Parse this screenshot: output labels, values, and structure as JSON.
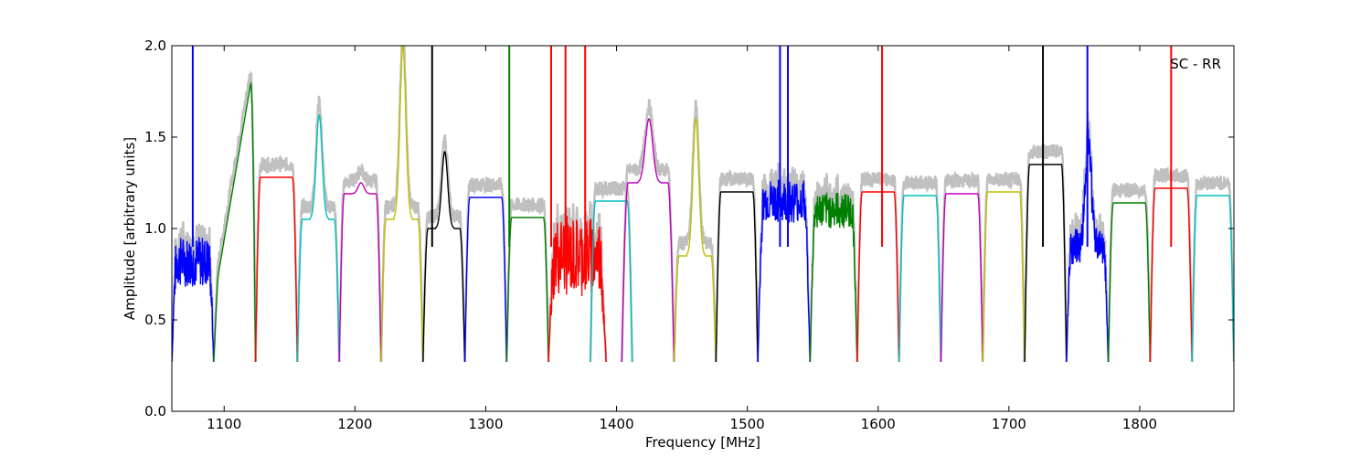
{
  "chart_data": {
    "type": "line",
    "title": "",
    "annotation": "SC - RR",
    "xlabel": "Frequency [MHz]",
    "ylabel": "Amplitude [arbitrary units]",
    "xlim": [
      1060,
      1872
    ],
    "ylim": [
      0,
      2.0
    ],
    "xticks": [
      1100,
      1200,
      1300,
      1400,
      1500,
      1600,
      1700,
      1800
    ],
    "xtick_labels": [
      "1100",
      "1200",
      "1300",
      "1400",
      "1500",
      "1600",
      "1700",
      "1800"
    ],
    "yticks": [
      0.0,
      0.5,
      1.0,
      1.5,
      2.0
    ],
    "ytick_labels": [
      "0.0",
      "0.5",
      "1.0",
      "1.5",
      "2.0"
    ],
    "grid": false,
    "band_colors": [
      "#0000ff",
      "#008000",
      "#ff0000",
      "#00bfbf",
      "#bf00bf",
      "#bfbf00",
      "#000000"
    ],
    "envelope_color": "#c0c0c0",
    "bands": [
      {
        "start": 1060,
        "end": 1092,
        "level": 0.82,
        "noise": 0.14,
        "color": "#0000ff"
      },
      {
        "start": 1092,
        "end": 1124,
        "level": 1.95,
        "shape": "ramp",
        "color": "#008000"
      },
      {
        "start": 1124,
        "end": 1156,
        "level": 1.28,
        "color": "#ff0000"
      },
      {
        "start": 1156,
        "end": 1188,
        "level": 1.05,
        "peak": 1.62,
        "color": "#00bfbf"
      },
      {
        "start": 1188,
        "end": 1220,
        "level": 1.19,
        "peak": 1.25,
        "color": "#bf00bf"
      },
      {
        "start": 1220,
        "end": 1252,
        "level": 1.05,
        "peak": 2.0,
        "color": "#bfbf00"
      },
      {
        "start": 1252,
        "end": 1284,
        "level": 1.0,
        "peak": 1.42,
        "color": "#000000"
      },
      {
        "start": 1284,
        "end": 1316,
        "level": 1.17,
        "color": "#0000ff"
      },
      {
        "start": 1316,
        "end": 1348,
        "level": 1.06,
        "color": "#008000"
      },
      {
        "start": 1348,
        "end": 1392,
        "level": 0.85,
        "noise": 0.22,
        "color": "#ff0000"
      },
      {
        "start": 1380,
        "end": 1412,
        "level": 1.15,
        "color": "#00bfbf"
      },
      {
        "start": 1404,
        "end": 1444,
        "level": 1.25,
        "peak": 1.6,
        "color": "#bf00bf"
      },
      {
        "start": 1444,
        "end": 1476,
        "level": 0.85,
        "peak": 1.6,
        "color": "#bfbf00"
      },
      {
        "start": 1476,
        "end": 1508,
        "level": 1.2,
        "color": "#000000"
      },
      {
        "start": 1508,
        "end": 1548,
        "level": 1.15,
        "noise": 0.12,
        "color": "#0000ff"
      },
      {
        "start": 1548,
        "end": 1584,
        "level": 1.1,
        "noise": 0.1,
        "color": "#008000"
      },
      {
        "start": 1584,
        "end": 1616,
        "level": 1.2,
        "color": "#ff0000"
      },
      {
        "start": 1616,
        "end": 1648,
        "level": 1.18,
        "color": "#00bfbf"
      },
      {
        "start": 1648,
        "end": 1680,
        "level": 1.19,
        "color": "#bf00bf"
      },
      {
        "start": 1680,
        "end": 1712,
        "level": 1.2,
        "color": "#bfbf00"
      },
      {
        "start": 1712,
        "end": 1744,
        "level": 1.35,
        "color": "#000000"
      },
      {
        "start": 1744,
        "end": 1776,
        "level": 0.9,
        "noise": 0.1,
        "peak": 1.5,
        "color": "#0000ff"
      },
      {
        "start": 1776,
        "end": 1808,
        "level": 1.14,
        "color": "#008000"
      },
      {
        "start": 1808,
        "end": 1840,
        "level": 1.22,
        "color": "#ff0000"
      },
      {
        "start": 1840,
        "end": 1872,
        "level": 1.18,
        "color": "#00bfbf"
      }
    ],
    "spikes": [
      {
        "x": 1076,
        "color": "#0000ff"
      },
      {
        "x": 1259,
        "color": "#000000"
      },
      {
        "x": 1318,
        "color": "#008000"
      },
      {
        "x": 1350,
        "color": "#ff0000"
      },
      {
        "x": 1361,
        "color": "#ff0000"
      },
      {
        "x": 1376,
        "color": "#ff0000"
      },
      {
        "x": 1525,
        "color": "#0000ff"
      },
      {
        "x": 1531,
        "color": "#0000ff"
      },
      {
        "x": 1603,
        "color": "#ff0000"
      },
      {
        "x": 1726,
        "color": "#000000"
      },
      {
        "x": 1760,
        "color": "#0000ff"
      },
      {
        "x": 1824,
        "color": "#ff0000"
      }
    ]
  }
}
